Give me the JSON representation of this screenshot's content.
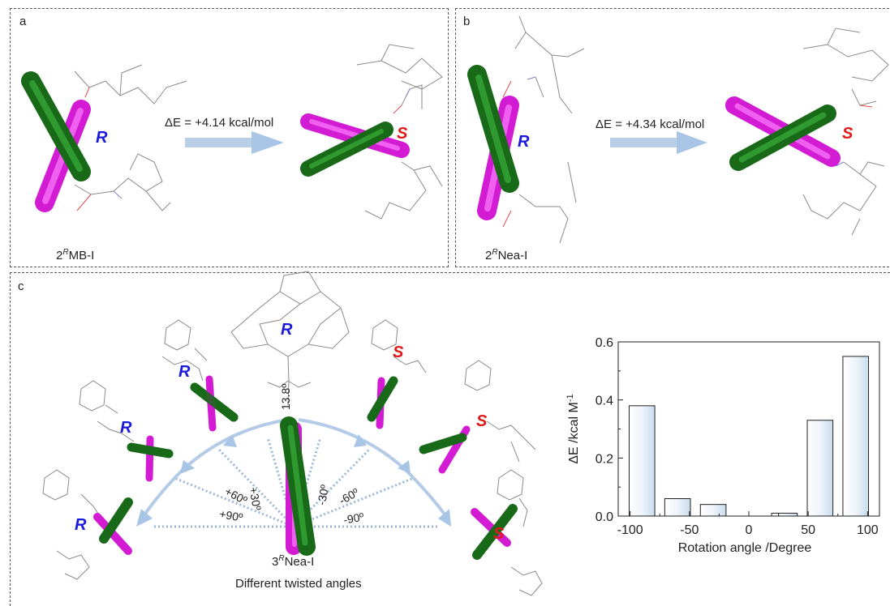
{
  "panel_a": {
    "label": "a",
    "energy": "ΔE = +4.14 kcal/mol",
    "left_chirality": "R",
    "right_chirality": "S",
    "compound_sup": "R",
    "compound_prefix": "2",
    "compound_name": "MB-I"
  },
  "panel_b": {
    "label": "b",
    "energy": "ΔE = +4.34 kcal/mol",
    "left_chirality": "R",
    "right_chirality": "S",
    "compound_sup": "R",
    "compound_prefix": "2",
    "compound_name": "Nea-I"
  },
  "panel_c": {
    "label": "c",
    "center_chirality": "R",
    "left_chiralities": [
      "R",
      "R",
      "R"
    ],
    "right_chiralities": [
      "S",
      "S",
      "S"
    ],
    "angles": [
      "13.8º",
      "+30º",
      "-30º",
      "+60º",
      "-60º",
      "+90º",
      "-90º"
    ],
    "compound_prefix": "3",
    "compound_sup": "R",
    "compound_name": "Nea-I",
    "subtitle": "Different twisted angles"
  },
  "colors": {
    "magenta": "#e61ce6",
    "green": "#1f7a1f",
    "arrow": "#b8cfe6",
    "chir_r": "#1a1adf",
    "chir_s": "#e01818"
  },
  "chart_data": {
    "type": "bar",
    "xlabel": "Rotation angle /Degree",
    "ylabel": "ΔE /kcal M",
    "ylabel_sup": "-1",
    "x": [
      -90,
      -60,
      -30,
      0,
      30,
      60,
      90
    ],
    "values": [
      0.38,
      0.06,
      0.04,
      0.0,
      0.01,
      0.33,
      0.55
    ],
    "xlim": [
      -110,
      110
    ],
    "ylim": [
      0,
      0.6
    ],
    "xticks": [
      -100,
      -50,
      0,
      50,
      100
    ],
    "yticks": [
      0.0,
      0.2,
      0.4,
      0.6
    ],
    "xtick_labels": [
      "-100",
      "-50",
      "0",
      "50",
      "100"
    ],
    "ytick_labels": [
      "0.0",
      "0.2",
      "0.4",
      "0.6"
    ],
    "grid": false
  }
}
